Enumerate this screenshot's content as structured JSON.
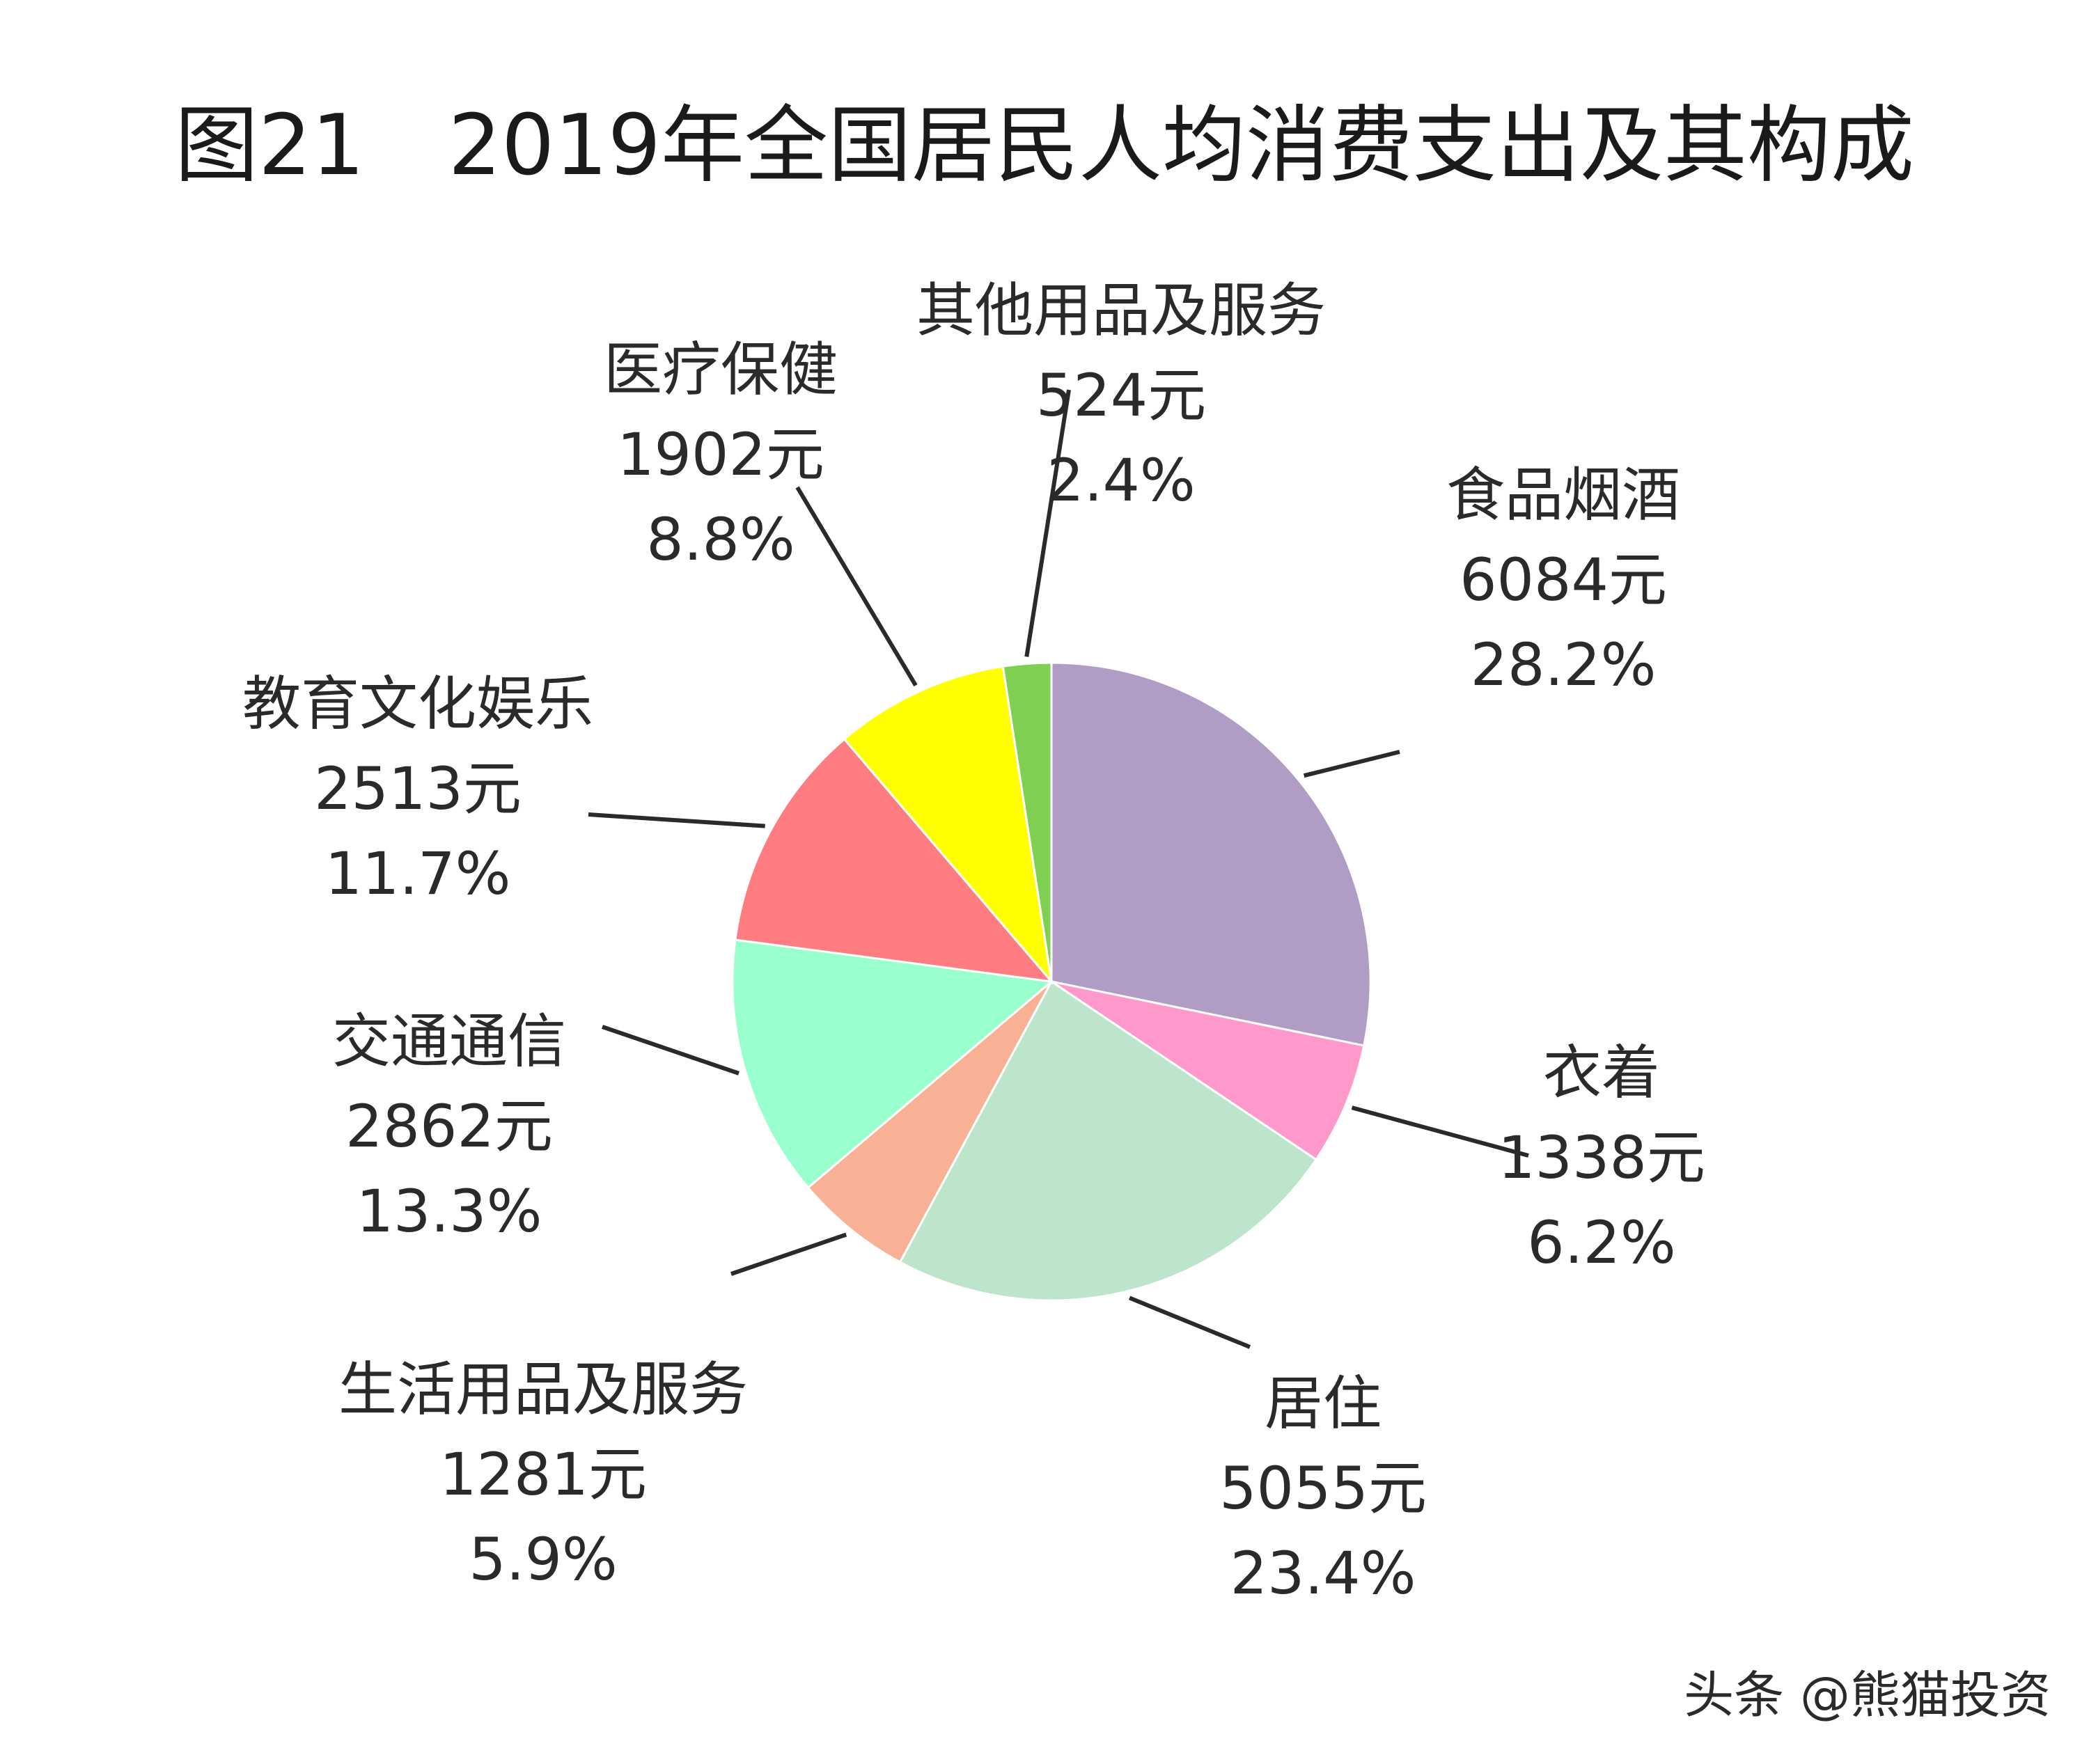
{
  "chart_data": {
    "type": "pie",
    "title": "图21　2019年全国居民人均消费支出及其构成",
    "slices": [
      {
        "name": "食品烟酒",
        "value": 6084,
        "value_label": "6084元",
        "percent": 28.2,
        "percent_label": "28.2%",
        "color": "#B19CC6"
      },
      {
        "name": "衣着",
        "value": 1338,
        "value_label": "1338元",
        "percent": 6.2,
        "percent_label": "6.2%",
        "color": "#FF99CC"
      },
      {
        "name": "居住",
        "value": 5055,
        "value_label": "5055元",
        "percent": 23.4,
        "percent_label": "23.4%",
        "color": "#BDE5CB"
      },
      {
        "name": "生活用品及服务",
        "value": 1281,
        "value_label": "1281元",
        "percent": 5.9,
        "percent_label": "5.9%",
        "color": "#F8B195"
      },
      {
        "name": "交通通信",
        "value": 2862,
        "value_label": "2862元",
        "percent": 13.3,
        "percent_label": "13.3%",
        "color": "#99FFCC"
      },
      {
        "name": "教育文化娱乐",
        "value": 2513,
        "value_label": "2513元",
        "percent": 11.7,
        "percent_label": "11.7%",
        "color": "#FF7C80"
      },
      {
        "name": "医疗保健",
        "value": 1902,
        "value_label": "1902元",
        "percent": 8.8,
        "percent_label": "8.8%",
        "color": "#FFFF00"
      },
      {
        "name": "其他用品及服务",
        "value": 524,
        "value_label": "524元",
        "percent": 2.4,
        "percent_label": "2.4%",
        "color": "#7FCF52"
      }
    ]
  },
  "watermark": "头条 @熊猫投资"
}
